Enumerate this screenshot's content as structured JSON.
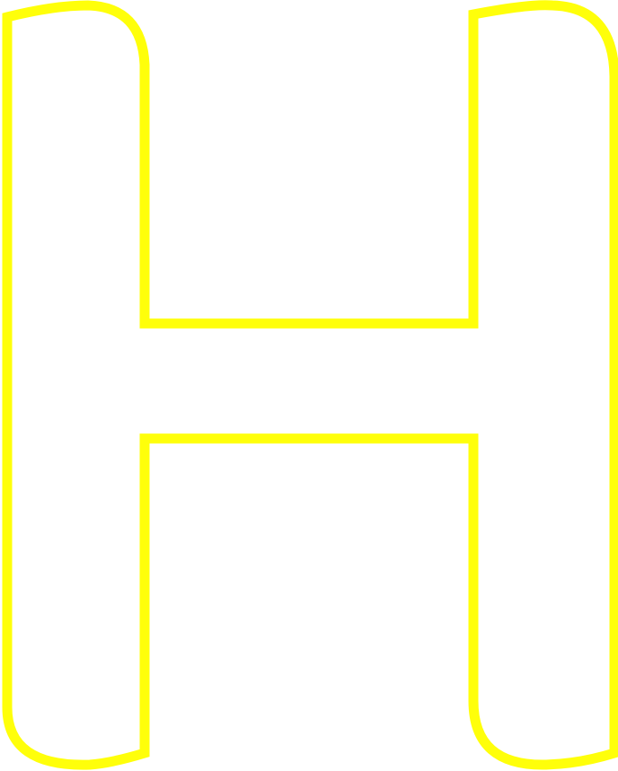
{
  "shape": {
    "letter": "H",
    "style": "outline",
    "stroke_color": "#ffff0a",
    "fill_color": "none",
    "background": "#ffffff"
  }
}
